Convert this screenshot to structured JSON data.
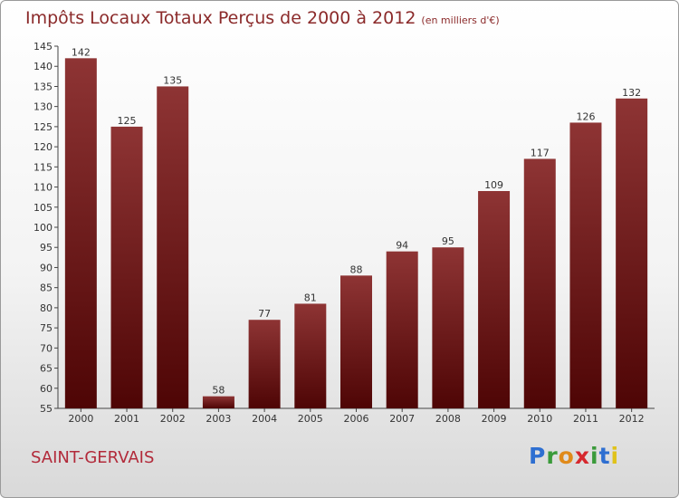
{
  "chart_data": {
    "type": "bar",
    "title": "Impôts Locaux Totaux Perçus de 2000 à 2012",
    "unit_label": "(en milliers d'€)",
    "categories": [
      "2000",
      "2001",
      "2002",
      "2003",
      "2004",
      "2005",
      "2006",
      "2007",
      "2008",
      "2009",
      "2010",
      "2011",
      "2012"
    ],
    "values": [
      142,
      125,
      135,
      58,
      77,
      81,
      88,
      94,
      95,
      109,
      117,
      126,
      132
    ],
    "yticks": [
      55,
      60,
      65,
      70,
      75,
      80,
      85,
      90,
      95,
      100,
      105,
      110,
      115,
      120,
      125,
      130,
      135,
      140,
      145
    ],
    "ylim": [
      55,
      145
    ],
    "xlabel": "",
    "ylabel": "",
    "grid": false,
    "bar_color": "#7a1c1c"
  },
  "footer": {
    "commune": "SAINT-GERVAIS",
    "brand_letters": [
      {
        "ch": "P",
        "color": "#2e6fd1"
      },
      {
        "ch": "r",
        "color": "#3a9a3a"
      },
      {
        "ch": "o",
        "color": "#e08a1a"
      },
      {
        "ch": "x",
        "color": "#d6282e"
      },
      {
        "ch": "i",
        "color": "#3a9a3a"
      },
      {
        "ch": "t",
        "color": "#2e6fd1"
      },
      {
        "ch": "i",
        "color": "#e0c21a"
      }
    ]
  }
}
